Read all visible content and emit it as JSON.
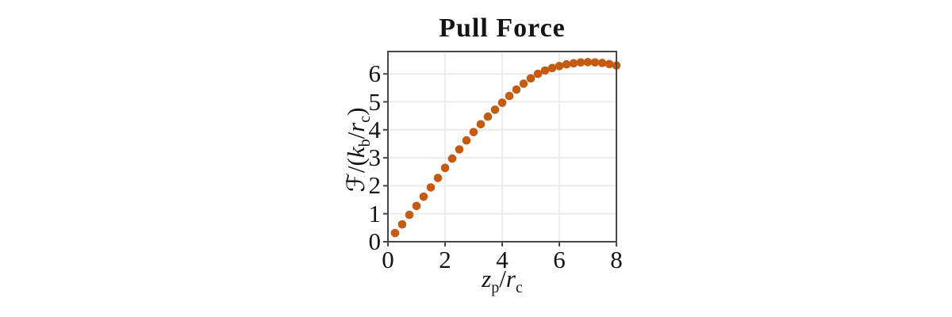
{
  "colors": {
    "marker": "#C55A11",
    "axis": "#474747",
    "grid": "#EAEAEA",
    "text": "#141414",
    "background": "#FFFFFF"
  },
  "chart_data": {
    "type": "scatter",
    "title": "Pull Force",
    "xlabel": "z_p/r_c",
    "ylabel": "ℱ/(k_b/r_c)",
    "xlabel_parts": {
      "z": "z",
      "zsub": "p",
      "slash": "/",
      "r": "r",
      "rsub": "c"
    },
    "ylabel_parts": {
      "f": "ℱ",
      "slash_open": "/(",
      "k": "k",
      "ksub": "b",
      "slash": "/",
      "r": "r",
      "rsub": "c",
      "close": ")"
    },
    "xlim": [
      0,
      8
    ],
    "ylim": [
      0,
      6.8
    ],
    "xticks": [
      0,
      2,
      4,
      6,
      8
    ],
    "yticks": [
      0,
      1,
      2,
      3,
      4,
      5,
      6
    ],
    "grid": true,
    "legend": false,
    "marker": "filled-circle",
    "x": [
      0.25,
      0.5,
      0.75,
      1.0,
      1.25,
      1.5,
      1.75,
      2.0,
      2.25,
      2.5,
      2.75,
      3.0,
      3.25,
      3.5,
      3.75,
      4.0,
      4.25,
      4.5,
      4.75,
      5.0,
      5.25,
      5.5,
      5.75,
      6.0,
      6.25,
      6.5,
      6.75,
      7.0,
      7.25,
      7.5,
      7.75,
      8.0
    ],
    "y": [
      0.31,
      0.62,
      0.96,
      1.28,
      1.61,
      1.94,
      2.28,
      2.64,
      2.97,
      3.3,
      3.62,
      3.92,
      4.2,
      4.47,
      4.72,
      4.97,
      5.21,
      5.44,
      5.65,
      5.84,
      6.0,
      6.12,
      6.21,
      6.28,
      6.34,
      6.38,
      6.41,
      6.42,
      6.41,
      6.39,
      6.35,
      6.3
    ]
  }
}
